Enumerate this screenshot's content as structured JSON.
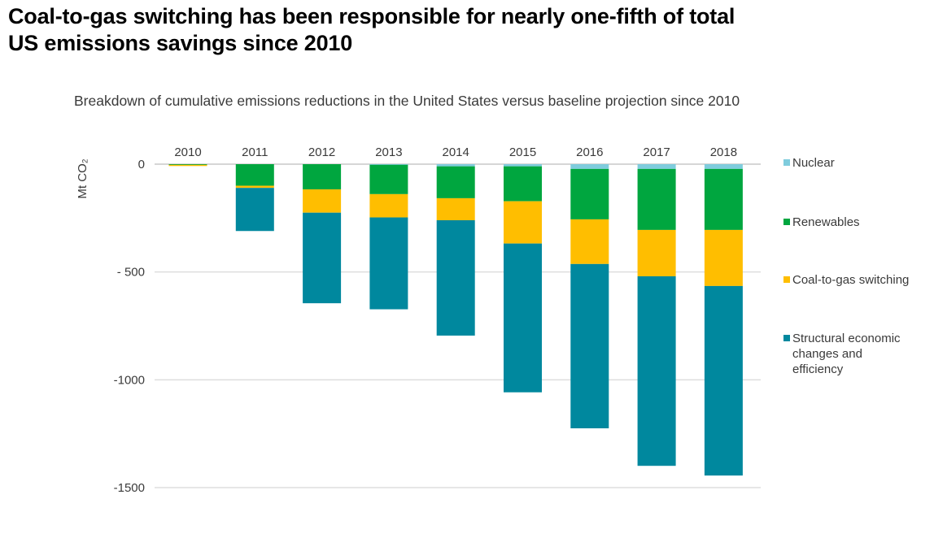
{
  "title_line1": "Coal-to-gas switching has been responsible for nearly one-fifth of total",
  "title_line2": "US emissions savings since 2010",
  "chart_data": {
    "type": "bar",
    "stacked": true,
    "title": "Breakdown of cumulative emissions reductions in the United States versus baseline projection since 2010",
    "xlabel": "",
    "ylabel": "Mt CO₂",
    "ylim": [
      -1500,
      0
    ],
    "yticks": [
      0,
      -500,
      -1000,
      -1500
    ],
    "ytick_labels": [
      "0",
      "- 500",
      "-1000",
      "-1500"
    ],
    "grid": true,
    "legend_position": "right",
    "categories": [
      "2010",
      "2011",
      "2012",
      "2013",
      "2014",
      "2015",
      "2016",
      "2017",
      "2018"
    ],
    "series": [
      {
        "name": "Nuclear",
        "color": "#7FCCDD",
        "values": [
          0,
          0,
          0,
          -3,
          -10,
          -10,
          -22,
          -22,
          -22
        ]
      },
      {
        "name": "Renewables",
        "color": "#00A63F",
        "values": [
          -3,
          -100,
          -117,
          -136,
          -148,
          -162,
          -234,
          -283,
          -283
        ]
      },
      {
        "name": "Coal-to-gas switching",
        "color": "#FFBE00",
        "values": [
          -3,
          -10,
          -108,
          -108,
          -102,
          -196,
          -207,
          -215,
          -260
        ]
      },
      {
        "name": "Structural economic changes and efficiency",
        "color": "#00889E",
        "values": [
          0,
          -200,
          -420,
          -426,
          -535,
          -690,
          -762,
          -879,
          -879
        ]
      }
    ],
    "legend_labels": [
      [
        "Nuclear"
      ],
      [
        "Renewables"
      ],
      [
        "Coal-to-gas switching"
      ],
      [
        "Structural economic",
        "changes and",
        "efficiency"
      ]
    ]
  }
}
